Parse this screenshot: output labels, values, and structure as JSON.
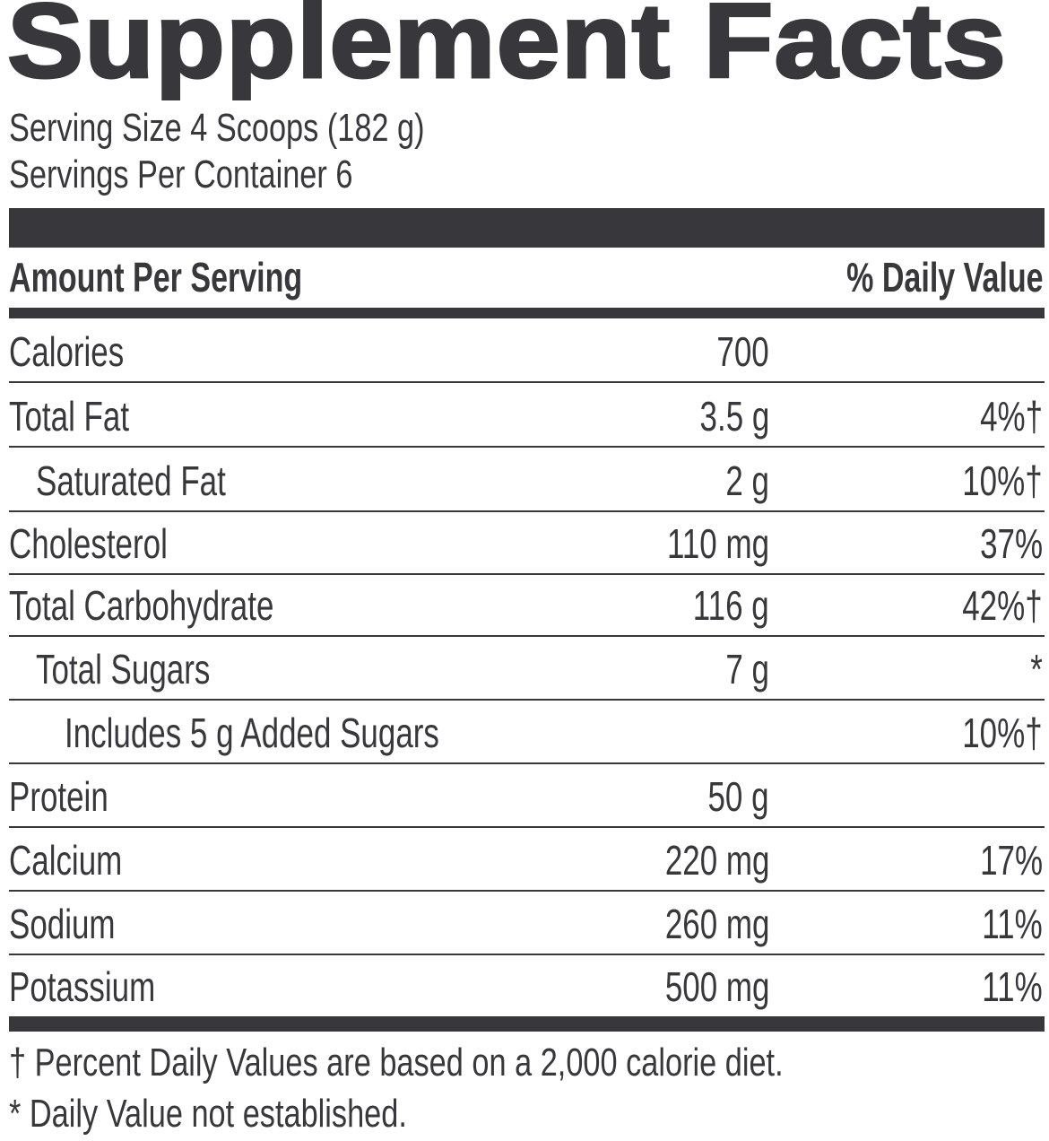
{
  "title": "Supplement Facts",
  "serving_size": "Serving Size 4 Scoops (182 g)",
  "servings_per_container": "Servings Per Container 6",
  "header": {
    "amount": "Amount Per Serving",
    "daily_value": "% Daily Value"
  },
  "rows": [
    {
      "label": "Calories",
      "amount": "700",
      "dv": ""
    },
    {
      "label": "Total Fat",
      "amount": "3.5 g",
      "dv": "4%†"
    },
    {
      "label": "Saturated Fat",
      "amount": "2 g",
      "dv": "10%†"
    },
    {
      "label": "Cholesterol",
      "amount": "110 mg",
      "dv": "37%"
    },
    {
      "label": "Total Carbohydrate",
      "amount": "116 g",
      "dv": "42%†"
    },
    {
      "label": "Total Sugars",
      "amount": "7 g",
      "dv": "*"
    },
    {
      "label": "Includes 5 g Added Sugars",
      "amount": "",
      "dv": "10%†"
    },
    {
      "label": "Protein",
      "amount": "50 g",
      "dv": ""
    },
    {
      "label": "Calcium",
      "amount": "220 mg",
      "dv": "17%"
    },
    {
      "label": "Sodium",
      "amount": "260 mg",
      "dv": "11%"
    },
    {
      "label": "Potassium",
      "amount": "500 mg",
      "dv": "11%"
    }
  ],
  "footnotes": [
    "† Percent Daily Values are based on a 2,000 calorie diet.",
    "* Daily Value not established."
  ],
  "colors": {
    "ink": "#38383c",
    "background": "#ffffff"
  }
}
